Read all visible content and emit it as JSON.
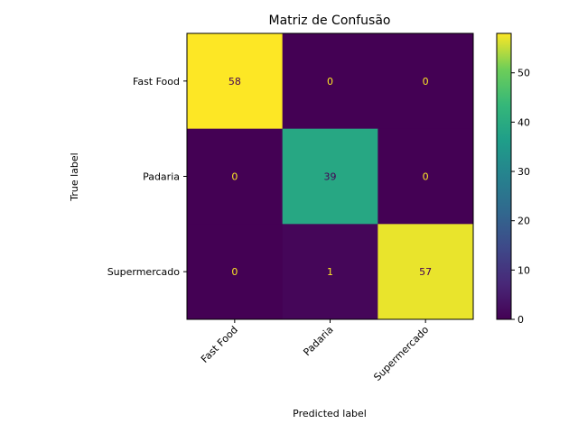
{
  "chart_data": {
    "type": "heatmap",
    "title": "Matriz de Confusão",
    "xlabel": "Predicted label",
    "ylabel": "True label",
    "row_labels": [
      "Fast Food",
      "Padaria",
      "Supermercado"
    ],
    "col_labels": [
      "Fast Food",
      "Padaria",
      "Supermercado"
    ],
    "values": [
      [
        58,
        0,
        0
      ],
      [
        0,
        39,
        0
      ],
      [
        0,
        1,
        57
      ]
    ],
    "colormap": "viridis",
    "vmin": 0,
    "vmax": 58,
    "colorbar_ticks": [
      "0",
      "10",
      "20",
      "30",
      "40",
      "50"
    ]
  },
  "colors": {
    "text_on_dark": "#fde725",
    "text_on_light": "#440154"
  }
}
